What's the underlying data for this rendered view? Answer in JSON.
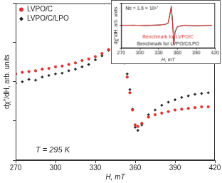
{
  "chart_data": [
    {
      "type": "scatter",
      "x_label": "H, mT",
      "y_label": "dχ″/dH, arb. units",
      "annotations": [
        "T = 295 K"
      ],
      "x": [
        270,
        275,
        280,
        285,
        290,
        295,
        300,
        305,
        310,
        315,
        320,
        325,
        330,
        335,
        340,
        345,
        348,
        350,
        352,
        354,
        356,
        358,
        360,
        362,
        365,
        370,
        375,
        380,
        385,
        390,
        395,
        400,
        405,
        410,
        415
      ],
      "series": [
        {
          "name": "LVPO/C",
          "color": "#e03030",
          "marker": "circle",
          "values": [
            0.1,
            0.12,
            0.13,
            0.14,
            0.16,
            0.17,
            0.19,
            0.2,
            0.22,
            0.24,
            0.27,
            0.29,
            0.32,
            0.36,
            0.41,
            0.47,
            0.49,
            0.4,
            0.24,
            0.06,
            -0.14,
            -0.36,
            -0.55,
            -0.57,
            -0.53,
            -0.45,
            -0.42,
            -0.4,
            -0.38,
            -0.36,
            -0.35,
            -0.34,
            -0.33,
            -0.32,
            -0.32
          ]
        },
        {
          "name": "LVPO/C/LPO",
          "color": "#222222",
          "marker": "diamond",
          "values": [
            -0.02,
            0.0,
            0.03,
            0.02,
            0.06,
            0.08,
            0.1,
            0.11,
            0.14,
            0.16,
            0.19,
            0.22,
            0.28,
            0.33,
            0.4,
            0.49,
            0.53,
            0.44,
            0.28,
            0.1,
            -0.1,
            -0.35,
            -0.58,
            -0.62,
            -0.55,
            -0.42,
            -0.36,
            -0.3,
            -0.26,
            -0.23,
            -0.2,
            -0.18,
            -0.16,
            -0.15,
            -0.14
          ]
        }
      ],
      "xlim": [
        270,
        420
      ],
      "xticks": [
        270,
        300,
        330,
        360,
        390,
        420
      ],
      "ylim": [
        -1,
        1
      ],
      "yticks": [
        -1,
        -0.5,
        0,
        0.5,
        1
      ],
      "tick_labels": "x",
      "grid": false,
      "legend": "upper left"
    },
    {
      "type": "line",
      "x_label": "H, mT",
      "y_label": "dχ″/dH, arb. units",
      "annotations": [
        "Ns = 1.6 × 10¹⁷"
      ],
      "x": [
        270,
        290,
        310,
        330,
        340,
        345,
        348,
        350,
        352,
        354,
        356,
        360,
        370,
        390,
        415
      ],
      "series": [
        {
          "name": "Benchmark for LVPO/C",
          "color": "#e03030",
          "values": [
            0.01,
            0,
            0.01,
            0.01,
            0.05,
            0.12,
            0.55,
            0.8,
            0.1,
            -0.8,
            -0.25,
            -0.04,
            0.01,
            0,
            0.01
          ]
        },
        {
          "name": "Benchmark for LVPO/C/LPO",
          "color": "#222222",
          "values": [
            0,
            0.01,
            -0.01,
            0.02,
            0.04,
            0.1,
            0.5,
            0.85,
            0.2,
            -0.85,
            -0.3,
            -0.05,
            0,
            -0.01,
            0
          ]
        }
      ],
      "xlim": [
        270,
        420
      ],
      "xticks": [
        270,
        300,
        330,
        360,
        390,
        420
      ],
      "ylim": [
        -1,
        1
      ],
      "yticks": [
        -1,
        0,
        1
      ],
      "tick_labels": "x",
      "grid": false,
      "legend": "lower center"
    }
  ]
}
